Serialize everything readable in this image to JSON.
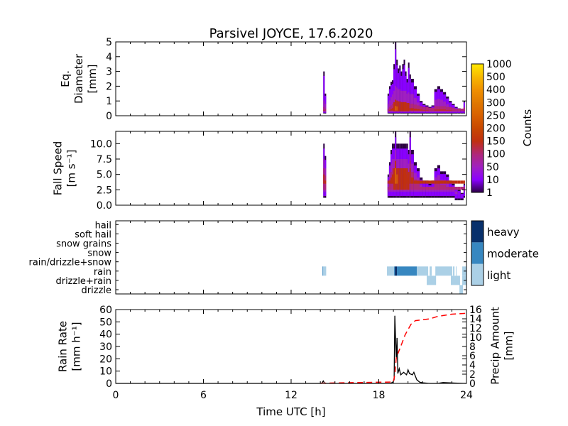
{
  "title": "Parsivel JOYCE, 17.6.2020",
  "chart_data": [
    {
      "type": "heatmap",
      "name": "diameter",
      "ylabel": [
        "Eq.",
        "Diameter",
        "[mm]"
      ],
      "ylim": [
        0,
        5
      ],
      "yticks": [
        "0",
        "1",
        "2",
        "3",
        "4",
        "5"
      ],
      "xlim": [
        0,
        24
      ],
      "columns_desc": "time_h, max_value, intensity(0-1)",
      "columns": [
        [
          14.2,
          3.0,
          0.4
        ],
        [
          14.3,
          1.5,
          0.3
        ],
        [
          18.6,
          1.5,
          0.3
        ],
        [
          18.7,
          2.0,
          0.4
        ],
        [
          18.8,
          2.3,
          0.5
        ],
        [
          18.9,
          2.4,
          0.6
        ],
        [
          19.0,
          3.5,
          0.7
        ],
        [
          19.1,
          5.0,
          0.85
        ],
        [
          19.2,
          3.8,
          0.8
        ],
        [
          19.3,
          3.2,
          0.75
        ],
        [
          19.4,
          3.4,
          0.75
        ],
        [
          19.5,
          3.0,
          0.7
        ],
        [
          19.6,
          3.5,
          0.7
        ],
        [
          19.7,
          3.8,
          0.7
        ],
        [
          19.8,
          3.0,
          0.7
        ],
        [
          19.9,
          2.5,
          0.65
        ],
        [
          20.0,
          3.6,
          0.65
        ],
        [
          20.1,
          2.8,
          0.6
        ],
        [
          20.2,
          2.5,
          0.6
        ],
        [
          20.4,
          2.0,
          0.55
        ],
        [
          20.6,
          1.5,
          0.5
        ],
        [
          20.8,
          1.0,
          0.45
        ],
        [
          21.0,
          0.8,
          0.4
        ],
        [
          21.2,
          0.7,
          0.4
        ],
        [
          21.4,
          0.6,
          0.35
        ],
        [
          21.6,
          0.7,
          0.35
        ],
        [
          21.8,
          1.8,
          0.45
        ],
        [
          22.0,
          2.0,
          0.45
        ],
        [
          22.2,
          1.8,
          0.45
        ],
        [
          22.4,
          1.6,
          0.45
        ],
        [
          22.6,
          1.3,
          0.4
        ],
        [
          22.8,
          1.0,
          0.4
        ],
        [
          23.0,
          0.8,
          0.35
        ],
        [
          23.2,
          0.6,
          0.3
        ],
        [
          23.4,
          0.5,
          0.3
        ],
        [
          23.6,
          0.4,
          0.3
        ],
        [
          23.8,
          1.0,
          0.35
        ]
      ]
    },
    {
      "type": "heatmap",
      "name": "fall-speed",
      "ylabel": [
        "Fall Speed",
        "[m s⁻¹]"
      ],
      "ylim": [
        0,
        12
      ],
      "yticks": [
        "0.0",
        "2.5",
        "5.0",
        "7.5",
        "10.0"
      ],
      "ytick_values": [
        0,
        2.5,
        5,
        7.5,
        10
      ],
      "xlim": [
        0,
        24
      ],
      "columns": [
        [
          14.2,
          10,
          0.4
        ],
        [
          14.3,
          8,
          0.3
        ],
        [
          18.6,
          5,
          0.3
        ],
        [
          18.7,
          7,
          0.4
        ],
        [
          18.8,
          9,
          0.5
        ],
        [
          18.9,
          10,
          0.6
        ],
        [
          19.0,
          10,
          0.7
        ],
        [
          19.1,
          12,
          0.85
        ],
        [
          19.2,
          10,
          0.8
        ],
        [
          19.3,
          10,
          0.75
        ],
        [
          19.4,
          10,
          0.75
        ],
        [
          19.5,
          10,
          0.7
        ],
        [
          19.6,
          10,
          0.7
        ],
        [
          19.7,
          10,
          0.7
        ],
        [
          19.8,
          10,
          0.7
        ],
        [
          19.9,
          10,
          0.65
        ],
        [
          20.0,
          9,
          0.65
        ],
        [
          20.1,
          12,
          0.6
        ],
        [
          20.2,
          9,
          0.6
        ],
        [
          20.4,
          7,
          0.55
        ],
        [
          20.6,
          6,
          0.5
        ],
        [
          20.8,
          4.5,
          0.45
        ],
        [
          21.0,
          4,
          0.4
        ],
        [
          21.2,
          4,
          0.4
        ],
        [
          21.4,
          3.5,
          0.35
        ],
        [
          21.6,
          4,
          0.35
        ],
        [
          21.8,
          6,
          0.45
        ],
        [
          22.0,
          6.5,
          0.45
        ],
        [
          22.2,
          5.5,
          0.45
        ],
        [
          22.4,
          5.5,
          0.45
        ],
        [
          22.6,
          5,
          0.4
        ],
        [
          22.8,
          4,
          0.4
        ],
        [
          23.0,
          3.5,
          0.35
        ],
        [
          23.2,
          3,
          0.3
        ],
        [
          23.4,
          2.5,
          0.3
        ],
        [
          23.6,
          2,
          0.3
        ],
        [
          23.8,
          3.5,
          0.35
        ]
      ]
    },
    {
      "type": "heatmap",
      "name": "precip-type",
      "categories": [
        "drizzle",
        "drizzle+rain",
        "rain",
        "rain/drizzle+snow",
        "snow",
        "snow grains",
        "soft hail",
        "hail"
      ],
      "xlim": [
        0,
        24
      ],
      "intervals_desc": "category, start_h, end_h, intensity",
      "intervals": [
        [
          "rain",
          14.15,
          14.2,
          "moderate"
        ],
        [
          "rain",
          14.2,
          14.4,
          "light"
        ],
        [
          "rain",
          18.56,
          19.05,
          "light"
        ],
        [
          "rain",
          19.05,
          19.1,
          "moderate"
        ],
        [
          "rain",
          19.1,
          19.24,
          "heavy"
        ],
        [
          "rain",
          19.24,
          20.6,
          "moderate"
        ],
        [
          "rain",
          20.6,
          21.38,
          "light"
        ],
        [
          "rain",
          21.48,
          21.62,
          "light"
        ],
        [
          "rain",
          21.87,
          23.03,
          "light"
        ],
        [
          "rain",
          23.08,
          23.18,
          "light"
        ],
        [
          "rain",
          23.27,
          23.32,
          "light"
        ],
        [
          "rain",
          23.71,
          24.0,
          "light"
        ],
        [
          "drizzle+rain",
          21.28,
          21.92,
          "light"
        ],
        [
          "drizzle+rain",
          22.93,
          23.56,
          "light"
        ],
        [
          "drizzle+rain",
          23.71,
          24.0,
          "light"
        ],
        [
          "drizzle",
          23.52,
          23.76,
          "light"
        ]
      ]
    },
    {
      "type": "line",
      "name": "rain",
      "xlabel": "Time UTC [h]",
      "xticks": [
        "0",
        "6",
        "12",
        "18",
        "24"
      ],
      "xtick_values": [
        0,
        6,
        12,
        18,
        24
      ],
      "ylabel": [
        "Rain Rate",
        "[mm h⁻¹]"
      ],
      "ylim": [
        0,
        60
      ],
      "yticks": [
        "0",
        "10",
        "20",
        "30",
        "40",
        "50",
        "60"
      ],
      "y2label": [
        "Precip Amount",
        "[mm]"
      ],
      "y2lim": [
        0,
        16
      ],
      "y2ticks": [
        "0",
        "2",
        "4",
        "6",
        "8",
        "10",
        "12",
        "14",
        "16"
      ],
      "series": [
        {
          "name": "rain rate",
          "color": "#000000",
          "style": "solid",
          "x": [
            0,
            14.1,
            14.2,
            14.3,
            18.8,
            18.95,
            19.05,
            19.1,
            19.15,
            19.2,
            19.25,
            19.3,
            19.4,
            19.5,
            19.7,
            19.9,
            20.0,
            20.1,
            20.3,
            20.4,
            20.6,
            20.8,
            21.0,
            21.5,
            22.0,
            22.4,
            22.8,
            23.2,
            24
          ],
          "y": [
            0,
            0,
            2,
            0,
            0,
            1,
            3,
            55,
            35,
            20,
            37,
            8,
            12,
            7,
            9,
            7,
            11,
            8,
            7,
            9,
            3,
            1,
            0.5,
            0,
            0,
            0.7,
            0.5,
            0.3,
            0
          ]
        },
        {
          "name": "precip amount",
          "color": "#ff0000",
          "style": "dashed",
          "axis": "right",
          "x": [
            14,
            19.0,
            19.1,
            19.2,
            19.5,
            19.8,
            20.2,
            20.5,
            21.0,
            21.5,
            22.0,
            23.0,
            24
          ],
          "y": [
            0.05,
            0.3,
            2,
            5.6,
            8,
            10.5,
            12.8,
            13.6,
            13.8,
            14.0,
            14.5,
            15.0,
            15.2
          ]
        }
      ]
    }
  ],
  "colorbar_counts": {
    "label": "Counts",
    "ticks": [
      "1",
      "10",
      "50",
      "100",
      "150",
      "200",
      "250",
      "300",
      "400",
      "500",
      "1000"
    ],
    "colors": [
      "#2a0040",
      "#8a00ff",
      "#a020c0",
      "#b02878",
      "#c03010",
      "#c84800",
      "#d86000",
      "#e07800",
      "#f09000",
      "#f8b800",
      "#ffe800"
    ]
  },
  "colorbar_type": {
    "labels": [
      "light",
      "moderate",
      "heavy"
    ],
    "colors": {
      "light": "#abd0e6",
      "moderate": "#3787c0",
      "heavy": "#08306b"
    }
  }
}
